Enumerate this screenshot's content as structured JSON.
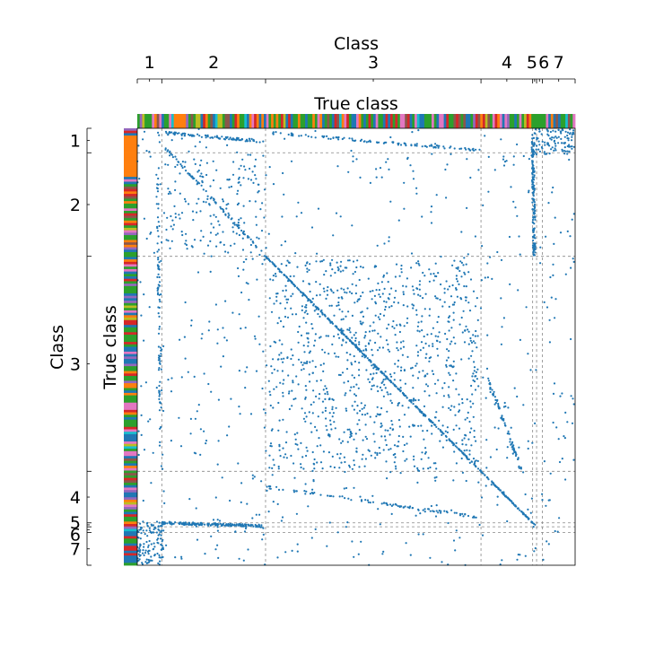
{
  "chart_data": {
    "type": "scatter",
    "title": "",
    "top_axis_label": "Class",
    "left_axis_label": "Class",
    "x_strip_label": "True class",
    "y_strip_label": "True class",
    "classes": [
      "1",
      "2",
      "3",
      "4",
      "5",
      "6",
      "7"
    ],
    "class_boundaries": [
      0,
      0.056,
      0.293,
      0.785,
      0.903,
      0.912,
      0.925,
      1.0
    ],
    "point_color": "#1f77b4",
    "boundary_color": "#888888",
    "class_palette": [
      "#1f77b4",
      "#ff7f0e",
      "#2ca02c",
      "#d62728",
      "#9467bd",
      "#8c564b",
      "#e377c2",
      "#7f7f7f",
      "#bcbd22",
      "#17becf"
    ],
    "structures": [
      {
        "name": "main-diagonal",
        "kind": "line",
        "from": [
          0.293,
          0.293
        ],
        "to": [
          0.912,
          0.912
        ],
        "count": 420
      },
      {
        "name": "class5-row-band",
        "kind": "line",
        "from": [
          0.056,
          0.903
        ],
        "to": [
          0.285,
          0.91
        ],
        "count": 160
      },
      {
        "name": "class5-column-band",
        "kind": "line",
        "from": [
          0.903,
          0.03
        ],
        "to": [
          0.907,
          0.29
        ],
        "count": 140
      },
      {
        "name": "class1-top-band",
        "kind": "line",
        "from": [
          0.06,
          0.01
        ],
        "to": [
          0.29,
          0.03
        ],
        "count": 90
      },
      {
        "name": "class3-top-band",
        "kind": "line",
        "from": [
          0.3,
          0.01
        ],
        "to": [
          0.78,
          0.05
        ],
        "count": 100
      },
      {
        "name": "class2-diagonal",
        "kind": "line",
        "from": [
          0.06,
          0.04
        ],
        "to": [
          0.29,
          0.29
        ],
        "count": 80
      },
      {
        "name": "class4-lower-curve",
        "kind": "line",
        "from": [
          0.29,
          0.82
        ],
        "to": [
          0.78,
          0.89
        ],
        "count": 90
      },
      {
        "name": "class4-right-curve",
        "kind": "line",
        "from": [
          0.8,
          0.57
        ],
        "to": [
          0.88,
          0.79
        ],
        "count": 70
      },
      {
        "name": "class1-left-column",
        "kind": "line",
        "from": [
          0.045,
          0.05
        ],
        "to": [
          0.055,
          0.78
        ],
        "count": 90
      },
      {
        "name": "bottom-left-cluster",
        "kind": "cluster",
        "x_range": [
          0.0,
          0.06
        ],
        "y_range": [
          0.9,
          1.0
        ],
        "count": 120
      },
      {
        "name": "top-right-cluster",
        "kind": "cluster",
        "x_range": [
          0.9,
          1.0
        ],
        "y_range": [
          0.0,
          0.06
        ],
        "count": 110
      },
      {
        "name": "class3-scatter",
        "kind": "cluster",
        "x_range": [
          0.3,
          0.78
        ],
        "y_range": [
          0.3,
          0.78
        ],
        "count": 900
      },
      {
        "name": "class2-scatter",
        "kind": "cluster",
        "x_range": [
          0.06,
          0.29
        ],
        "y_range": [
          0.06,
          0.29
        ],
        "count": 140
      },
      {
        "name": "off-block-scatter",
        "kind": "cluster",
        "x_range": [
          0.0,
          1.0
        ],
        "y_range": [
          0.0,
          1.0
        ],
        "count": 700
      }
    ]
  }
}
